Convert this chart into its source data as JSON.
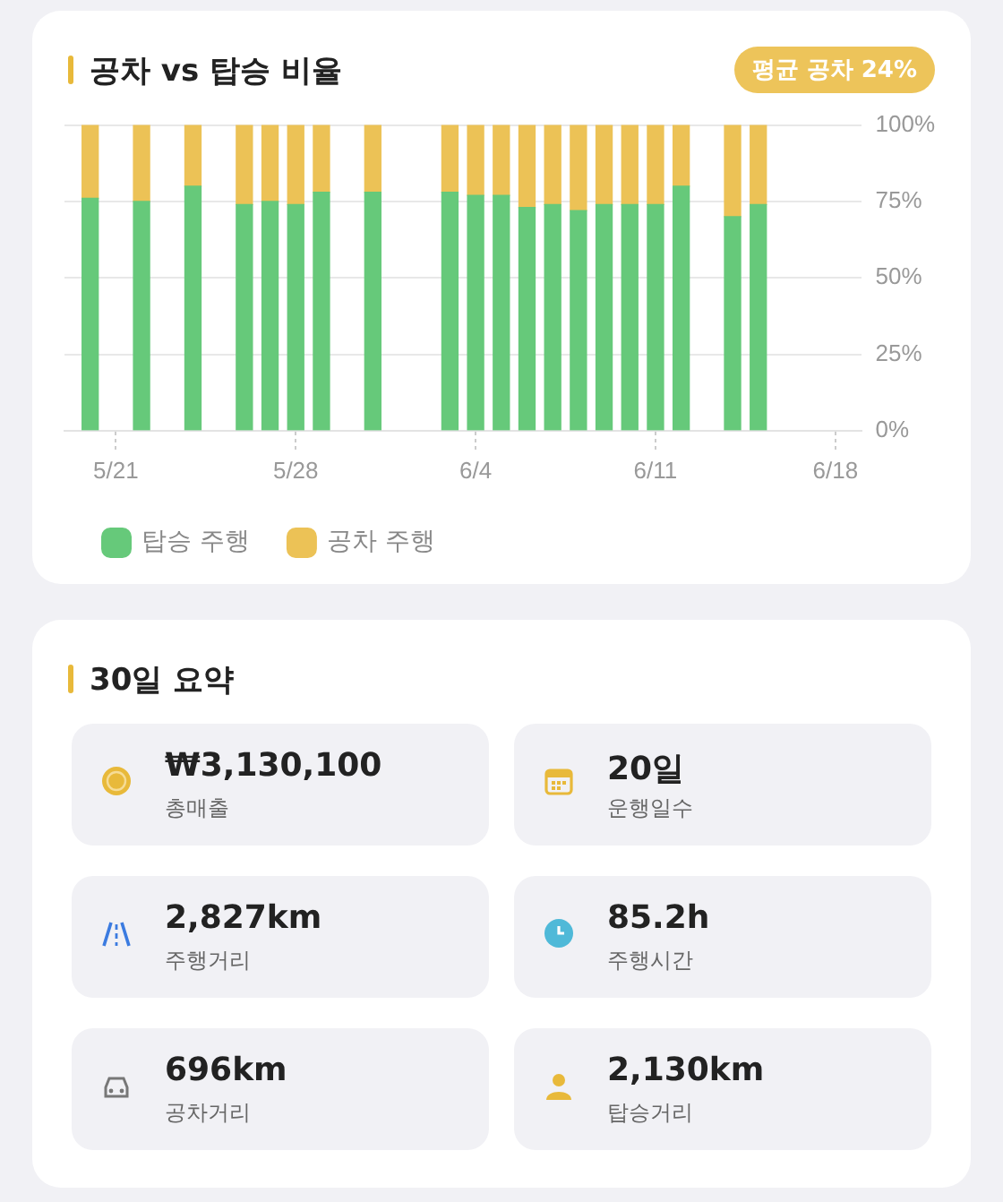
{
  "chart_data": [
    {
      "type": "bar",
      "title": "공차 vs 탑승 비율",
      "annotations": [
        "평균 공차 24%"
      ],
      "x": [
        "--05-20",
        "--05-22",
        "--05-24",
        "--05-26",
        "--05-27",
        "--05-28",
        "--05-29",
        "--05-31",
        "--06-03",
        "--06-04",
        "--06-05",
        "--06-06",
        "--06-07",
        "--06-08",
        "--06-09",
        "--06-10",
        "--06-11",
        "--06-12",
        "--06-14",
        "--06-15"
      ],
      "series": [
        {
          "name": "탑승 주행",
          "color": "#66c97a",
          "values": [
            76,
            75,
            80,
            74,
            75,
            74,
            78,
            78,
            78,
            77,
            77,
            73,
            74,
            72,
            74,
            74,
            74,
            80,
            70,
            74
          ]
        },
        {
          "name": "공차 주행",
          "color": "#ecc256",
          "values": [
            24,
            25,
            20,
            26,
            25,
            26,
            22,
            22,
            22,
            23,
            23,
            27,
            26,
            28,
            26,
            26,
            26,
            20,
            30,
            26
          ]
        }
      ],
      "stacked": true,
      "xlim": [
        "--05-19",
        "--06-19"
      ],
      "xticks": [
        {
          "value": "--05-21",
          "label": "5/21"
        },
        {
          "value": "--05-28",
          "label": "5/28"
        },
        {
          "value": "--06-04",
          "label": "6/4"
        },
        {
          "value": "--06-11",
          "label": "6/11"
        },
        {
          "value": "--06-18",
          "label": "6/18"
        }
      ],
      "ylim": [
        0,
        100
      ],
      "yticks": [
        {
          "value": 0,
          "label": "0%"
        },
        {
          "value": 25,
          "label": "25%"
        },
        {
          "value": 50,
          "label": "50%"
        },
        {
          "value": 75,
          "label": "75%"
        },
        {
          "value": 100,
          "label": "100%"
        }
      ],
      "grid": "y",
      "legend": "bottom left"
    },
    {
      "type": "other",
      "title": "30일 요약",
      "annotations": [
        "₩3,130,100",
        "총매출",
        "20일",
        "운행일수",
        "2,827km",
        "주행거리",
        "85.2h",
        "주행시간",
        "696km",
        "공차거리",
        "2,130km",
        "탑승거리"
      ]
    }
  ]
}
